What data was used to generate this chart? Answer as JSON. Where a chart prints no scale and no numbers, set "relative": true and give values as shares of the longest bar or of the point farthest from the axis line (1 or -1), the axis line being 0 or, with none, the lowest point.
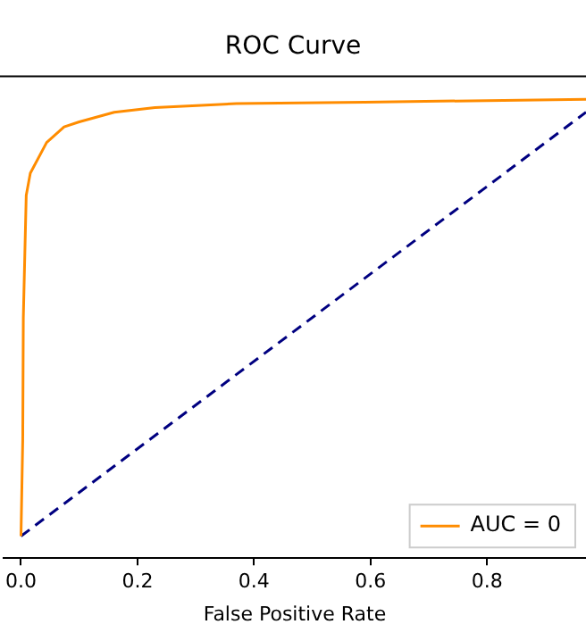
{
  "chart_data": {
    "type": "line",
    "title": "ROC Curve",
    "xlabel": "False Positive Rate",
    "relative": true,
    "xlim": [
      -0.03,
      0.97
    ],
    "xticks": [
      {
        "value": 0,
        "label": "0.0"
      },
      0.2,
      0.4,
      0.6,
      0.8
    ],
    "grid": false,
    "legend": "bottom right",
    "marker": "none",
    "series": [
      {
        "name": "AUC = 0",
        "color": "#ff8c00",
        "line_style": "solid",
        "x": [
          0,
          0.003,
          0.004,
          0.009,
          0.016,
          0.044,
          0.074,
          0.1,
          0.16,
          0.23,
          0.31,
          0.37,
          0.59,
          0.97
        ],
        "values": [
          0.048,
          0.257,
          0.524,
          0.791,
          0.839,
          0.906,
          0.94,
          0.951,
          0.972,
          0.982,
          0.987,
          0.991,
          0.994,
          1
        ]
      },
      {
        "color": "#000080",
        "line_style": "dashed",
        "x": [
          0,
          0.97
        ],
        "values": [
          0.048,
          0.972
        ]
      }
    ]
  }
}
